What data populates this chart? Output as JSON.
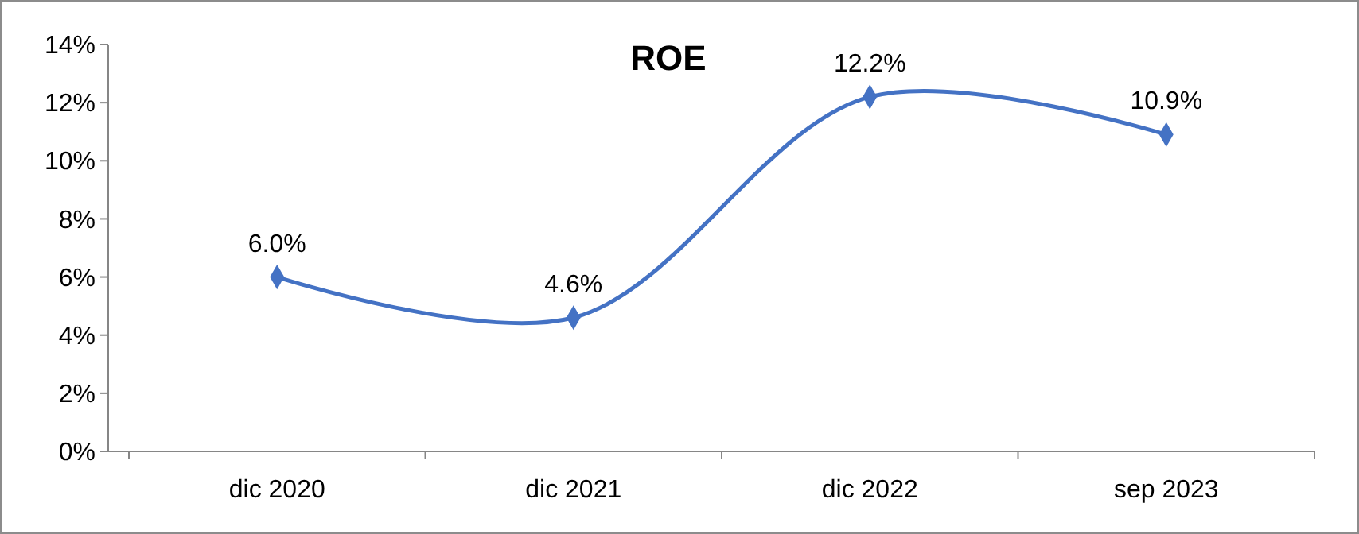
{
  "chart_data": {
    "type": "line",
    "title": "ROE",
    "categories": [
      "dic 2020",
      "dic 2021",
      "dic 2022",
      "sep 2023"
    ],
    "series": [
      {
        "color": "#4472c4",
        "values": [
          6.0,
          4.6,
          12.2,
          10.9
        ],
        "value_labels": [
          "6.0%",
          "4.6%",
          "12.2%",
          "10.9%"
        ]
      }
    ],
    "ylim": [
      0,
      14
    ],
    "yticks": [
      {
        "value": 0,
        "label": "0%"
      },
      {
        "value": 2,
        "label": "2%"
      },
      {
        "value": 4,
        "label": "4%"
      },
      {
        "value": 6,
        "label": "6%"
      },
      {
        "value": 8,
        "label": "8%"
      },
      {
        "value": 10,
        "label": "10%"
      },
      {
        "value": 12,
        "label": "12%"
      },
      {
        "value": 14,
        "label": "14%"
      }
    ],
    "grid": false,
    "marker": "diamond",
    "line_style": "solid"
  }
}
